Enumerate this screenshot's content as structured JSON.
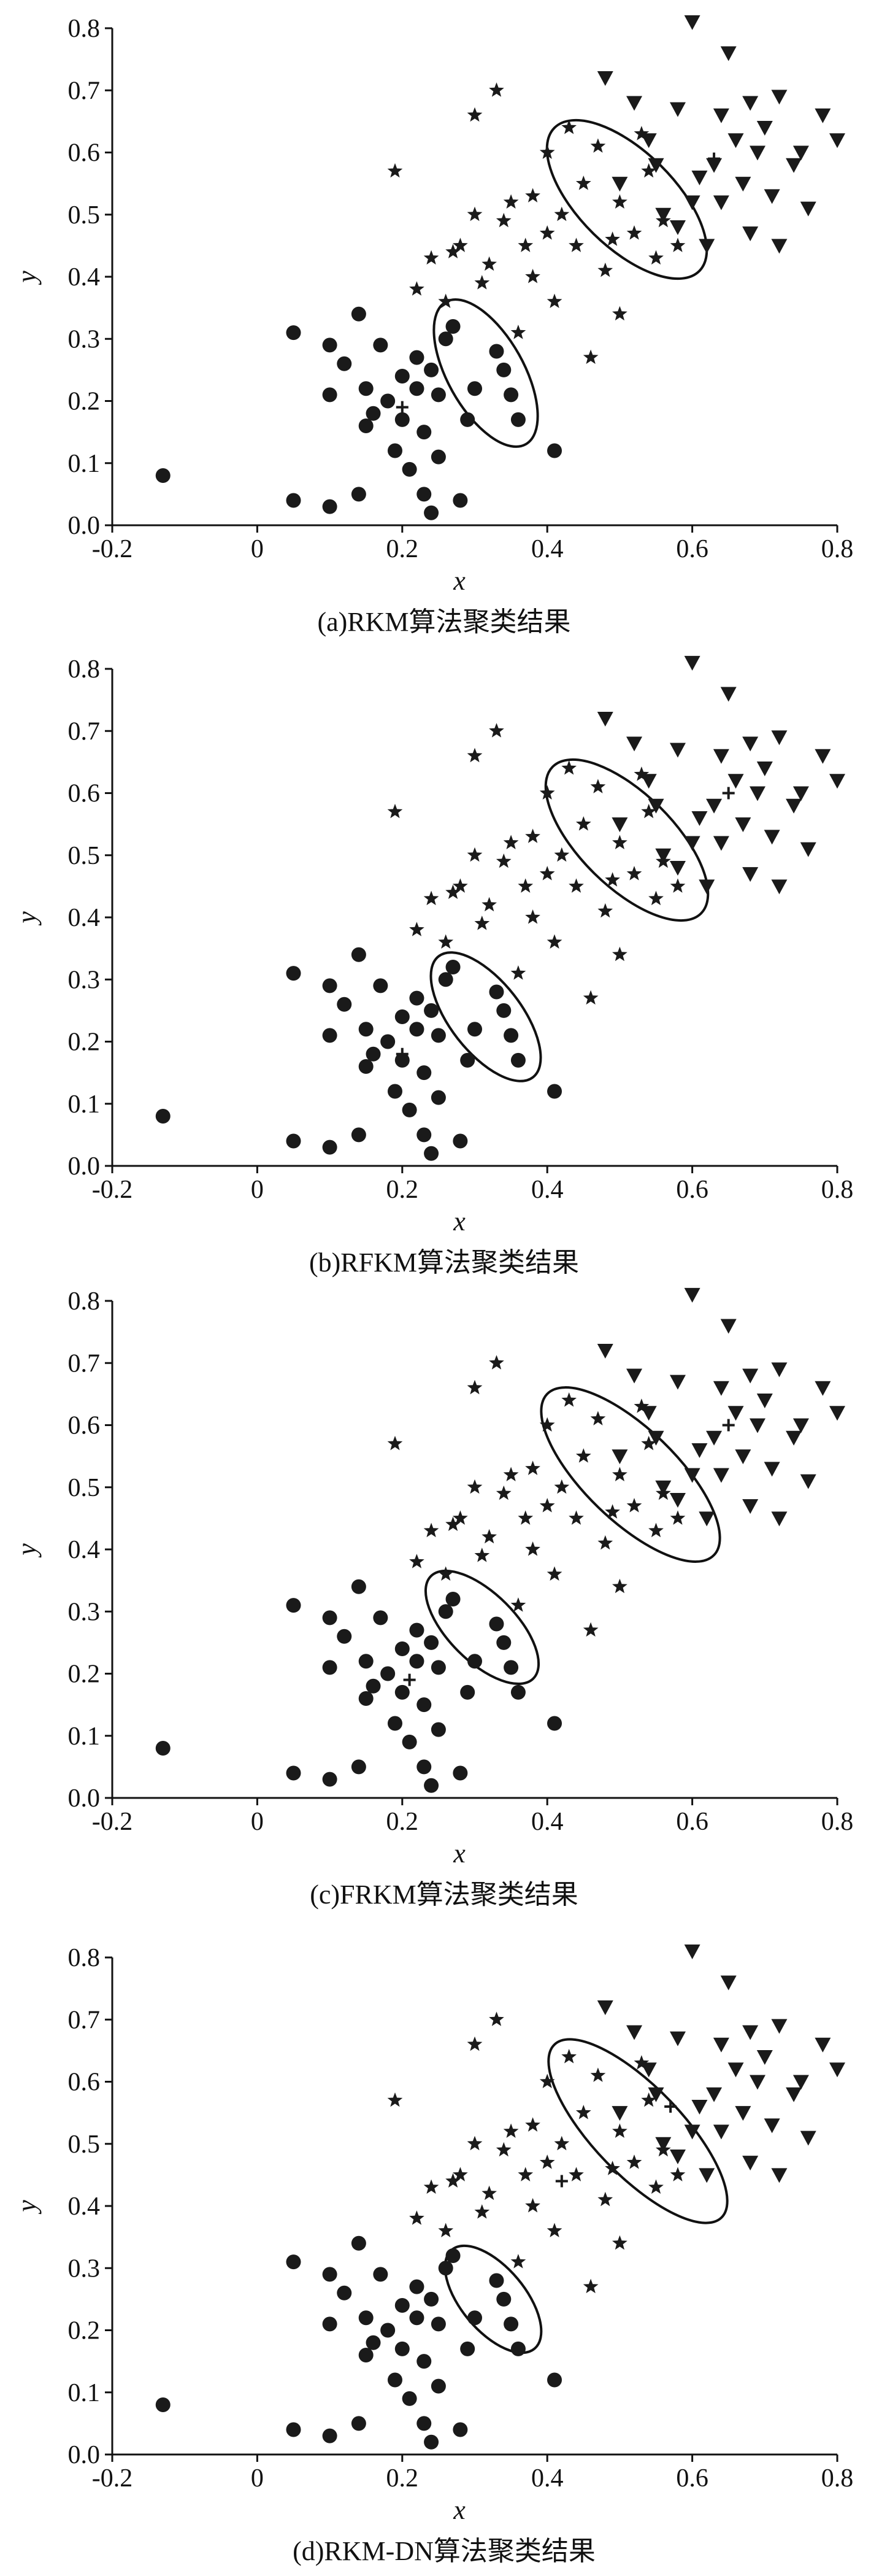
{
  "chart_data": [
    {
      "type": "scatter",
      "caption": "(a)RKM算法聚类结果",
      "x_label": "x",
      "y_label": "y",
      "xlim": [
        -0.2,
        0.8
      ],
      "ylim": [
        0,
        0.8
      ],
      "xticks": [
        -0.2,
        0,
        0.2,
        0.4,
        0.6,
        0.8
      ],
      "yticks": [
        {
          "value": 0,
          "label": "0.0"
        },
        0.1,
        0.2,
        0.3,
        0.4,
        0.5,
        0.6,
        0.7,
        0.8
      ],
      "series": [
        {
          "marker": "circle",
          "color": "#1a1a1a",
          "x": [
            -0.13,
            0.05,
            0.05,
            0.1,
            0.1,
            0.1,
            0.12,
            0.14,
            0.14,
            0.15,
            0.15,
            0.16,
            0.17,
            0.18,
            0.19,
            0.2,
            0.2,
            0.21,
            0.22,
            0.22,
            0.23,
            0.23,
            0.24,
            0.24,
            0.25,
            0.25,
            0.26,
            0.27,
            0.28,
            0.29,
            0.3,
            0.33,
            0.34,
            0.35,
            0.36,
            0.41
          ],
          "values": [
            0.08,
            0.04,
            0.31,
            0.03,
            0.21,
            0.29,
            0.26,
            0.34,
            0.05,
            0.16,
            0.22,
            0.18,
            0.29,
            0.2,
            0.12,
            0.24,
            0.17,
            0.09,
            0.22,
            0.27,
            0.05,
            0.15,
            0.02,
            0.25,
            0.11,
            0.21,
            0.3,
            0.32,
            0.04,
            0.17,
            0.22,
            0.28,
            0.25,
            0.21,
            0.17,
            0.12
          ]
        },
        {
          "marker": "star",
          "color": "#1a1a1a",
          "x": [
            0.19,
            0.22,
            0.24,
            0.26,
            0.27,
            0.28,
            0.3,
            0.31,
            0.32,
            0.33,
            0.34,
            0.35,
            0.36,
            0.37,
            0.38,
            0.38,
            0.4,
            0.4,
            0.41,
            0.42,
            0.43,
            0.44,
            0.45,
            0.46,
            0.47,
            0.48,
            0.49,
            0.5,
            0.5,
            0.52,
            0.53,
            0.54,
            0.55,
            0.56,
            0.58,
            0.3
          ],
          "values": [
            0.57,
            0.38,
            0.43,
            0.36,
            0.44,
            0.45,
            0.5,
            0.39,
            0.42,
            0.7,
            0.49,
            0.52,
            0.31,
            0.45,
            0.4,
            0.53,
            0.47,
            0.6,
            0.36,
            0.5,
            0.64,
            0.45,
            0.55,
            0.27,
            0.61,
            0.41,
            0.46,
            0.34,
            0.52,
            0.47,
            0.63,
            0.57,
            0.43,
            0.49,
            0.45,
            0.66
          ]
        },
        {
          "marker": "triangle",
          "color": "#1a1a1a",
          "x": [
            0.48,
            0.5,
            0.52,
            0.54,
            0.56,
            0.58,
            0.58,
            0.6,
            0.61,
            0.62,
            0.63,
            0.64,
            0.64,
            0.65,
            0.66,
            0.67,
            0.68,
            0.68,
            0.69,
            0.7,
            0.71,
            0.72,
            0.72,
            0.74,
            0.75,
            0.76,
            0.78,
            0.8,
            0.55,
            0.6
          ],
          "values": [
            0.72,
            0.55,
            0.68,
            0.62,
            0.5,
            0.67,
            0.48,
            0.81,
            0.56,
            0.45,
            0.58,
            0.66,
            0.52,
            0.76,
            0.62,
            0.55,
            0.47,
            0.68,
            0.6,
            0.64,
            0.53,
            0.45,
            0.69,
            0.58,
            0.6,
            0.51,
            0.66,
            0.62,
            0.58,
            0.52
          ]
        },
        {
          "marker": "plus",
          "color": "#1a1a1a",
          "x": [
            0.2,
            0.63
          ],
          "values": [
            0.19,
            0.59
          ]
        }
      ]
    },
    {
      "type": "scatter",
      "caption": "(b)RFKM算法聚类结果",
      "x_label": "x",
      "y_label": "y",
      "xlim": [
        -0.2,
        0.8
      ],
      "ylim": [
        0,
        0.8
      ],
      "xticks": [
        -0.2,
        0,
        0.2,
        0.4,
        0.6,
        0.8
      ],
      "yticks": [
        {
          "value": 0,
          "label": "0.0"
        },
        0.1,
        0.2,
        0.3,
        0.4,
        0.5,
        0.6,
        0.7,
        0.8
      ],
      "series": [
        {
          "marker": "circle",
          "color": "#1a1a1a",
          "x": [
            -0.13,
            0.05,
            0.05,
            0.1,
            0.1,
            0.1,
            0.12,
            0.14,
            0.14,
            0.15,
            0.15,
            0.16,
            0.17,
            0.18,
            0.19,
            0.2,
            0.2,
            0.21,
            0.22,
            0.22,
            0.23,
            0.23,
            0.24,
            0.24,
            0.25,
            0.25,
            0.26,
            0.27,
            0.28,
            0.29,
            0.3,
            0.33,
            0.34,
            0.35,
            0.36,
            0.41
          ],
          "values": [
            0.08,
            0.04,
            0.31,
            0.03,
            0.21,
            0.29,
            0.26,
            0.34,
            0.05,
            0.16,
            0.22,
            0.18,
            0.29,
            0.2,
            0.12,
            0.24,
            0.17,
            0.09,
            0.22,
            0.27,
            0.05,
            0.15,
            0.02,
            0.25,
            0.11,
            0.21,
            0.3,
            0.32,
            0.04,
            0.17,
            0.22,
            0.28,
            0.25,
            0.21,
            0.17,
            0.12
          ]
        },
        {
          "marker": "star",
          "color": "#1a1a1a",
          "x": [
            0.19,
            0.22,
            0.24,
            0.26,
            0.27,
            0.28,
            0.3,
            0.31,
            0.32,
            0.33,
            0.34,
            0.35,
            0.36,
            0.37,
            0.38,
            0.38,
            0.4,
            0.4,
            0.41,
            0.42,
            0.43,
            0.44,
            0.45,
            0.46,
            0.47,
            0.48,
            0.49,
            0.5,
            0.5,
            0.52,
            0.53,
            0.54,
            0.55,
            0.56,
            0.58,
            0.3
          ],
          "values": [
            0.57,
            0.38,
            0.43,
            0.36,
            0.44,
            0.45,
            0.5,
            0.39,
            0.42,
            0.7,
            0.49,
            0.52,
            0.31,
            0.45,
            0.4,
            0.53,
            0.47,
            0.6,
            0.36,
            0.5,
            0.64,
            0.45,
            0.55,
            0.27,
            0.61,
            0.41,
            0.46,
            0.34,
            0.52,
            0.47,
            0.63,
            0.57,
            0.43,
            0.49,
            0.45,
            0.66
          ]
        },
        {
          "marker": "triangle",
          "color": "#1a1a1a",
          "x": [
            0.48,
            0.5,
            0.52,
            0.54,
            0.56,
            0.58,
            0.58,
            0.6,
            0.61,
            0.62,
            0.63,
            0.64,
            0.64,
            0.65,
            0.66,
            0.67,
            0.68,
            0.68,
            0.69,
            0.7,
            0.71,
            0.72,
            0.72,
            0.74,
            0.75,
            0.76,
            0.78,
            0.8,
            0.55,
            0.6
          ],
          "values": [
            0.72,
            0.55,
            0.68,
            0.62,
            0.5,
            0.67,
            0.48,
            0.81,
            0.56,
            0.45,
            0.58,
            0.66,
            0.52,
            0.76,
            0.62,
            0.55,
            0.47,
            0.68,
            0.6,
            0.64,
            0.53,
            0.45,
            0.69,
            0.58,
            0.6,
            0.51,
            0.66,
            0.62,
            0.58,
            0.52
          ]
        },
        {
          "marker": "plus",
          "color": "#1a1a1a",
          "x": [
            0.2,
            0.65
          ],
          "values": [
            0.18,
            0.6
          ]
        }
      ]
    },
    {
      "type": "scatter",
      "caption": "(c)FRKM算法聚类结果",
      "x_label": "x",
      "y_label": "y",
      "xlim": [
        -0.2,
        0.8
      ],
      "ylim": [
        0,
        0.8
      ],
      "xticks": [
        -0.2,
        0,
        0.2,
        0.4,
        0.6,
        0.8
      ],
      "yticks": [
        {
          "value": 0,
          "label": "0.0"
        },
        0.1,
        0.2,
        0.3,
        0.4,
        0.5,
        0.6,
        0.7,
        0.8
      ],
      "series": [
        {
          "marker": "circle",
          "color": "#1a1a1a",
          "x": [
            -0.13,
            0.05,
            0.05,
            0.1,
            0.1,
            0.1,
            0.12,
            0.14,
            0.14,
            0.15,
            0.15,
            0.16,
            0.17,
            0.18,
            0.19,
            0.2,
            0.2,
            0.21,
            0.22,
            0.22,
            0.23,
            0.23,
            0.24,
            0.24,
            0.25,
            0.25,
            0.26,
            0.27,
            0.28,
            0.29,
            0.3,
            0.33,
            0.34,
            0.35,
            0.36,
            0.41
          ],
          "values": [
            0.08,
            0.04,
            0.31,
            0.03,
            0.21,
            0.29,
            0.26,
            0.34,
            0.05,
            0.16,
            0.22,
            0.18,
            0.29,
            0.2,
            0.12,
            0.24,
            0.17,
            0.09,
            0.22,
            0.27,
            0.05,
            0.15,
            0.02,
            0.25,
            0.11,
            0.21,
            0.3,
            0.32,
            0.04,
            0.17,
            0.22,
            0.28,
            0.25,
            0.21,
            0.17,
            0.12
          ]
        },
        {
          "marker": "star",
          "color": "#1a1a1a",
          "x": [
            0.19,
            0.22,
            0.24,
            0.26,
            0.27,
            0.28,
            0.3,
            0.31,
            0.32,
            0.33,
            0.34,
            0.35,
            0.36,
            0.37,
            0.38,
            0.38,
            0.4,
            0.4,
            0.41,
            0.42,
            0.43,
            0.44,
            0.45,
            0.46,
            0.47,
            0.48,
            0.49,
            0.5,
            0.5,
            0.52,
            0.53,
            0.54,
            0.55,
            0.56,
            0.58,
            0.3
          ],
          "values": [
            0.57,
            0.38,
            0.43,
            0.36,
            0.44,
            0.45,
            0.5,
            0.39,
            0.42,
            0.7,
            0.49,
            0.52,
            0.31,
            0.45,
            0.4,
            0.53,
            0.47,
            0.6,
            0.36,
            0.5,
            0.64,
            0.45,
            0.55,
            0.27,
            0.61,
            0.41,
            0.46,
            0.34,
            0.52,
            0.47,
            0.63,
            0.57,
            0.43,
            0.49,
            0.45,
            0.66
          ]
        },
        {
          "marker": "triangle",
          "color": "#1a1a1a",
          "x": [
            0.48,
            0.5,
            0.52,
            0.54,
            0.56,
            0.58,
            0.58,
            0.6,
            0.61,
            0.62,
            0.63,
            0.64,
            0.64,
            0.65,
            0.66,
            0.67,
            0.68,
            0.68,
            0.69,
            0.7,
            0.71,
            0.72,
            0.72,
            0.74,
            0.75,
            0.76,
            0.78,
            0.8,
            0.55,
            0.6
          ],
          "values": [
            0.72,
            0.55,
            0.68,
            0.62,
            0.5,
            0.67,
            0.48,
            0.81,
            0.56,
            0.45,
            0.58,
            0.66,
            0.52,
            0.76,
            0.62,
            0.55,
            0.47,
            0.68,
            0.6,
            0.64,
            0.53,
            0.45,
            0.69,
            0.58,
            0.6,
            0.51,
            0.66,
            0.62,
            0.58,
            0.52
          ]
        },
        {
          "marker": "plus",
          "color": "#1a1a1a",
          "x": [
            0.21,
            0.65
          ],
          "values": [
            0.19,
            0.6
          ]
        }
      ]
    },
    {
      "type": "scatter",
      "caption": "(d)RKM-DN算法聚类结果",
      "x_label": "x",
      "y_label": "y",
      "xlim": [
        -0.2,
        0.8
      ],
      "ylim": [
        0,
        0.8
      ],
      "xticks": [
        -0.2,
        0,
        0.2,
        0.4,
        0.6,
        0.8
      ],
      "yticks": [
        {
          "value": 0,
          "label": "0.0"
        },
        0.1,
        0.2,
        0.3,
        0.4,
        0.5,
        0.6,
        0.7,
        0.8
      ],
      "series": [
        {
          "marker": "circle",
          "color": "#1a1a1a",
          "x": [
            -0.13,
            0.05,
            0.05,
            0.1,
            0.1,
            0.1,
            0.12,
            0.14,
            0.14,
            0.15,
            0.15,
            0.16,
            0.17,
            0.18,
            0.19,
            0.2,
            0.2,
            0.21,
            0.22,
            0.22,
            0.23,
            0.23,
            0.24,
            0.24,
            0.25,
            0.25,
            0.26,
            0.27,
            0.28,
            0.29,
            0.3,
            0.33,
            0.34,
            0.35,
            0.36,
            0.41
          ],
          "values": [
            0.08,
            0.04,
            0.31,
            0.03,
            0.21,
            0.29,
            0.26,
            0.34,
            0.05,
            0.16,
            0.22,
            0.18,
            0.29,
            0.2,
            0.12,
            0.24,
            0.17,
            0.09,
            0.22,
            0.27,
            0.05,
            0.15,
            0.02,
            0.25,
            0.11,
            0.21,
            0.3,
            0.32,
            0.04,
            0.17,
            0.22,
            0.28,
            0.25,
            0.21,
            0.17,
            0.12
          ]
        },
        {
          "marker": "star",
          "color": "#1a1a1a",
          "x": [
            0.19,
            0.22,
            0.24,
            0.26,
            0.27,
            0.28,
            0.3,
            0.31,
            0.32,
            0.33,
            0.34,
            0.35,
            0.36,
            0.37,
            0.38,
            0.38,
            0.4,
            0.4,
            0.41,
            0.42,
            0.43,
            0.44,
            0.45,
            0.46,
            0.47,
            0.48,
            0.49,
            0.5,
            0.5,
            0.52,
            0.53,
            0.54,
            0.55,
            0.56,
            0.58,
            0.3
          ],
          "values": [
            0.57,
            0.38,
            0.43,
            0.36,
            0.44,
            0.45,
            0.5,
            0.39,
            0.42,
            0.7,
            0.49,
            0.52,
            0.31,
            0.45,
            0.4,
            0.53,
            0.47,
            0.6,
            0.36,
            0.5,
            0.64,
            0.45,
            0.55,
            0.27,
            0.61,
            0.41,
            0.46,
            0.34,
            0.52,
            0.47,
            0.63,
            0.57,
            0.43,
            0.49,
            0.45,
            0.66
          ]
        },
        {
          "marker": "triangle",
          "color": "#1a1a1a",
          "x": [
            0.48,
            0.5,
            0.52,
            0.54,
            0.56,
            0.58,
            0.58,
            0.6,
            0.61,
            0.62,
            0.63,
            0.64,
            0.64,
            0.65,
            0.66,
            0.67,
            0.68,
            0.68,
            0.69,
            0.7,
            0.71,
            0.72,
            0.72,
            0.74,
            0.75,
            0.76,
            0.78,
            0.8,
            0.55,
            0.6
          ],
          "values": [
            0.72,
            0.55,
            0.68,
            0.62,
            0.5,
            0.67,
            0.48,
            0.81,
            0.56,
            0.45,
            0.58,
            0.66,
            0.52,
            0.76,
            0.62,
            0.55,
            0.47,
            0.68,
            0.6,
            0.64,
            0.53,
            0.45,
            0.69,
            0.58,
            0.6,
            0.51,
            0.66,
            0.62,
            0.58,
            0.52
          ]
        },
        {
          "marker": "plus",
          "color": "#1a1a1a",
          "x": [
            0.25,
            0.42,
            0.57
          ],
          "values": [
            0.21,
            0.44,
            0.56
          ]
        }
      ]
    }
  ]
}
